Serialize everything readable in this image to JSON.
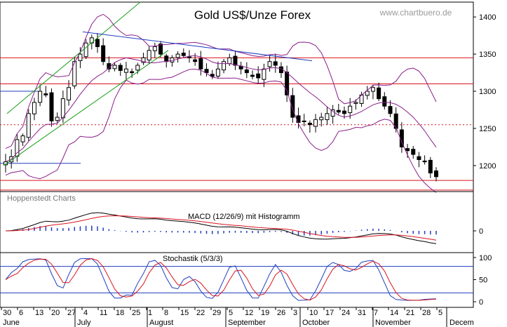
{
  "chart_data": {
    "type": "candlestick",
    "title": "Gold US$/Unze Forex",
    "watermark": "www.chartbuero.de",
    "source": "Hoppenstedt Charts",
    "price_axis": {
      "ticks": [
        1200,
        1250,
        1300,
        1350,
        1400
      ],
      "ylim": [
        1165,
        1420
      ]
    },
    "macd_panel": {
      "label": "MACD (12/26/9) mit Histogramm",
      "ticks": [
        0
      ]
    },
    "stoch_panel": {
      "label": "Stochastik (5/3/3)",
      "ticks": [
        0,
        50,
        100
      ],
      "ylim": [
        0,
        100
      ],
      "levels": [
        20,
        80
      ]
    },
    "x_axis": {
      "day_ticks": [
        "30",
        "6",
        "13",
        "20",
        "27",
        "4",
        "11",
        "18",
        "25",
        "1",
        "8",
        "15",
        "22",
        "29",
        "5",
        "12",
        "19",
        "26",
        "3",
        "10",
        "17",
        "24",
        "31",
        "7",
        "14",
        "21",
        "28",
        "5"
      ],
      "months": [
        "June",
        "July",
        "August",
        "September",
        "October",
        "November",
        "Decem"
      ]
    },
    "horizontal_lines": {
      "solid_red": [
        1345,
        1310,
        1180,
        1167
      ],
      "dotted_red": [
        1255
      ],
      "blue": [
        1300,
        1203
      ]
    },
    "colors": {
      "band": "#8a1e8a",
      "trend": "#1f3fbf",
      "channel": "#1a9e1a",
      "macd": "#000000",
      "signal": "#d8141e",
      "stoch_k": "#1f3fbf",
      "stoch_d": "#d8141e",
      "level": "#d8141e"
    },
    "close": [
      1205,
      1212,
      1235,
      1240,
      1270,
      1285,
      1300,
      1295,
      1260,
      1265,
      1290,
      1305,
      1340,
      1350,
      1365,
      1372,
      1360,
      1340,
      1330,
      1335,
      1328,
      1330,
      1325,
      1335,
      1345,
      1355,
      1360,
      1350,
      1340,
      1345,
      1350,
      1348,
      1345,
      1340,
      1330,
      1325,
      1320,
      1330,
      1340,
      1345,
      1335,
      1330,
      1325,
      1320,
      1318,
      1330,
      1340,
      1335,
      1325,
      1295,
      1265,
      1258,
      1260,
      1255,
      1262,
      1265,
      1270,
      1275,
      1272,
      1270,
      1280,
      1285,
      1295,
      1300,
      1305,
      1290,
      1280,
      1270,
      1250,
      1225,
      1220,
      1215,
      1208,
      1205,
      1190,
      1185
    ]
  }
}
